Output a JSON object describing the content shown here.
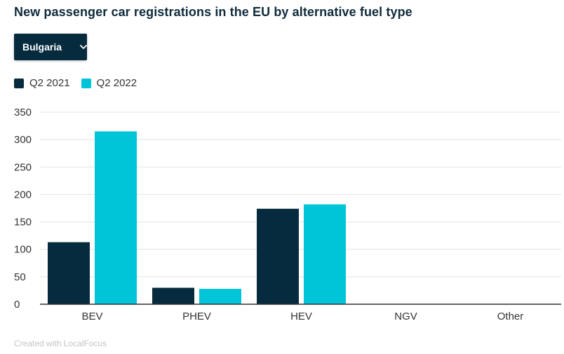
{
  "header": {
    "title": "New passenger car registrations in the EU by alternative fuel type"
  },
  "filter": {
    "selected": "Bulgaria"
  },
  "legend": [
    {
      "label": "Q2 2021",
      "color": "#062b3e"
    },
    {
      "label": "Q2 2022",
      "color": "#00c5d8"
    }
  ],
  "chart_data": {
    "type": "bar",
    "categories": [
      "BEV",
      "PHEV",
      "HEV",
      "NGV",
      "Other"
    ],
    "series": [
      {
        "name": "Q2 2021",
        "color": "#062b3e",
        "values": [
          113,
          30,
          174,
          0,
          0
        ]
      },
      {
        "name": "Q2 2022",
        "color": "#00c5d8",
        "values": [
          315,
          28,
          182,
          0,
          0
        ]
      }
    ],
    "yticks": [
      0,
      50,
      100,
      150,
      200,
      250,
      300,
      350
    ],
    "ylim": [
      0,
      350
    ],
    "grid": true,
    "legend_position": "top-left"
  },
  "footer": {
    "credit": "Created with LocalFocus"
  }
}
